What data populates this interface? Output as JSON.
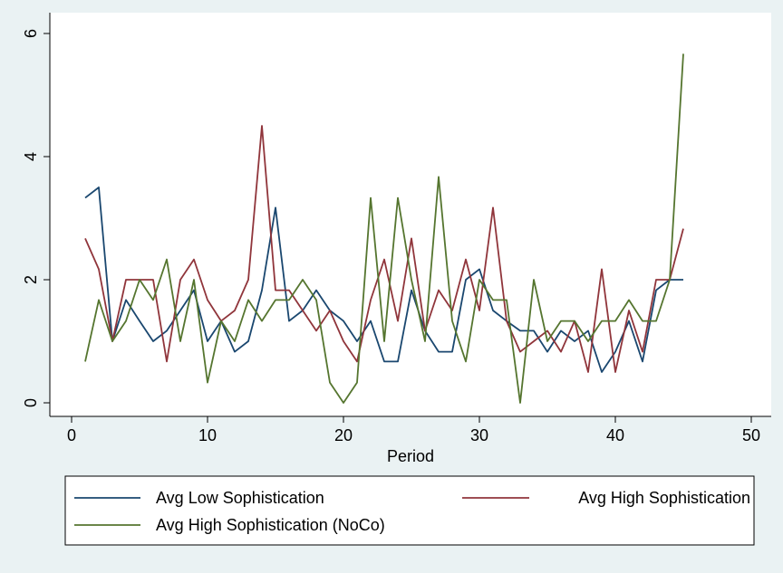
{
  "chart_data": {
    "type": "line",
    "title": "",
    "xlabel": "Period",
    "ylabel": "",
    "xlim": [
      0,
      50
    ],
    "ylim": [
      0,
      6
    ],
    "xticks": [
      0,
      10,
      20,
      30,
      40,
      50
    ],
    "yticks": [
      0,
      2,
      4,
      6
    ],
    "grid": false,
    "legend_position": "bottom",
    "x": [
      1,
      2,
      3,
      4,
      5,
      6,
      7,
      8,
      9,
      10,
      11,
      12,
      13,
      14,
      15,
      16,
      17,
      18,
      19,
      20,
      21,
      22,
      23,
      24,
      25,
      26,
      27,
      28,
      29,
      30,
      31,
      32,
      33,
      34,
      35,
      36,
      37,
      38,
      39,
      40,
      41,
      42,
      43,
      44,
      45
    ],
    "series": [
      {
        "name": "Avg Low Sophistication",
        "color": "#1a476f",
        "values": [
          3.33,
          3.5,
          1.0,
          1.67,
          1.33,
          1.0,
          1.17,
          1.5,
          1.83,
          1.0,
          1.33,
          0.83,
          1.0,
          1.83,
          3.17,
          1.33,
          1.5,
          1.83,
          1.5,
          1.33,
          1.0,
          1.33,
          0.67,
          0.67,
          1.83,
          1.17,
          0.83,
          0.83,
          2.0,
          2.17,
          1.5,
          1.33,
          1.17,
          1.17,
          0.83,
          1.17,
          1.0,
          1.17,
          0.5,
          0.83,
          1.33,
          0.67,
          1.83,
          2.0,
          2.0
        ]
      },
      {
        "name": "Avg High Sophistication",
        "color": "#90353b",
        "values": [
          2.67,
          2.17,
          1.0,
          2.0,
          2.0,
          2.0,
          0.67,
          2.0,
          2.33,
          1.67,
          1.33,
          1.5,
          2.0,
          4.5,
          1.83,
          1.83,
          1.5,
          1.17,
          1.5,
          1.0,
          0.67,
          1.67,
          2.33,
          1.33,
          2.67,
          1.17,
          1.83,
          1.5,
          2.33,
          1.5,
          3.17,
          1.33,
          0.83,
          1.0,
          1.17,
          0.83,
          1.33,
          0.5,
          2.17,
          0.5,
          1.5,
          0.83,
          2.0,
          2.0,
          2.83
        ]
      },
      {
        "name": "Avg High Sophistication (NoCo)",
        "color": "#55752f",
        "values": [
          0.67,
          1.67,
          1.0,
          1.33,
          2.0,
          1.67,
          2.33,
          1.0,
          2.0,
          0.33,
          1.33,
          1.0,
          1.67,
          1.33,
          1.67,
          1.67,
          2.0,
          1.67,
          0.33,
          0.0,
          0.33,
          3.33,
          1.0,
          3.33,
          2.0,
          1.0,
          3.67,
          1.33,
          0.67,
          2.0,
          1.67,
          1.67,
          0.0,
          2.0,
          1.0,
          1.33,
          1.33,
          1.0,
          1.33,
          1.33,
          1.67,
          1.33,
          1.33,
          2.0,
          5.67
        ]
      }
    ]
  }
}
